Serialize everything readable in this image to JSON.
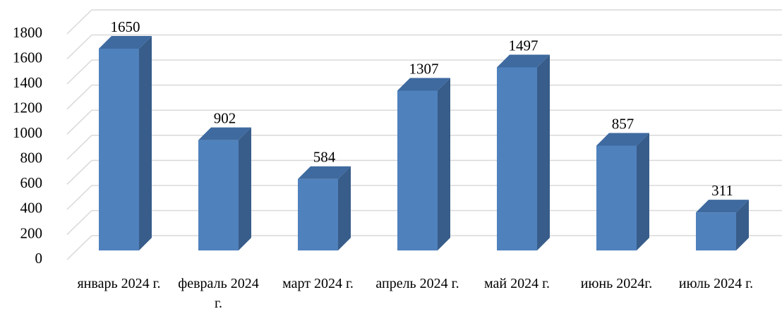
{
  "chart_data": {
    "type": "bar3d",
    "categories": [
      "январь 2024 г.",
      "февраль 2024 г.",
      "март 2024 г.",
      "апрель 2024 г.",
      "май 2024 г.",
      "июнь 2024г.",
      "июль 2024 г."
    ],
    "values": [
      1650,
      902,
      584,
      1307,
      1497,
      857,
      311
    ],
    "color": "#4f81bd",
    "ylim": [
      0,
      1800
    ],
    "yticks": [
      0,
      200,
      400,
      600,
      800,
      1000,
      1200,
      1400,
      1600,
      1800
    ],
    "grid": true
  }
}
